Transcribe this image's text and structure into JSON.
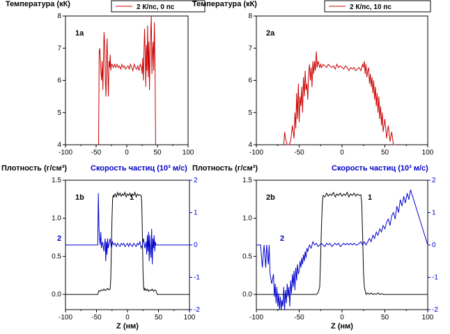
{
  "colors": {
    "black": "#000000",
    "red": "#cc0000",
    "blue": "#0000cc"
  },
  "chart_data": [
    {
      "panel": "1a",
      "type": "line",
      "ylabel": "Температура (кК)",
      "legend": "2 К/пс, 0 пс",
      "xlim": [
        -100,
        100
      ],
      "ylim": [
        4,
        8
      ],
      "xticks": [
        "-100",
        "-50",
        "0",
        "50",
        "100"
      ],
      "yticks": [
        "4",
        "5",
        "6",
        "7",
        "8"
      ],
      "series": [
        {
          "name": "2 К/пс, 0 пс",
          "color": "red",
          "x": [
            -46,
            -45,
            -44,
            -43,
            -42,
            -41,
            -40,
            -39,
            -38,
            -37,
            -36,
            -35,
            -34,
            -33,
            -32,
            -31,
            -30,
            -29,
            -28,
            -27,
            -26,
            -25,
            -24,
            -22,
            -20,
            -18,
            -16,
            -14,
            -12,
            -10,
            -8,
            -6,
            -4,
            -2,
            0,
            2,
            4,
            6,
            8,
            10,
            12,
            14,
            16,
            18,
            20,
            22,
            24,
            25,
            26,
            27,
            28,
            29,
            30,
            31,
            32,
            33,
            34,
            35,
            36,
            37,
            38,
            39,
            40,
            41,
            42,
            43,
            44,
            45,
            46,
            47
          ],
          "y": [
            4.0,
            6.9,
            7.0,
            6.6,
            6.2,
            6.0,
            6.6,
            5.7,
            6.8,
            7.5,
            7.1,
            6.0,
            5.5,
            6.8,
            7.3,
            6.2,
            5.5,
            6.6,
            6.4,
            6.8,
            6.3,
            6.5,
            6.5,
            6.4,
            6.5,
            6.4,
            6.5,
            6.4,
            6.45,
            6.35,
            6.5,
            6.4,
            6.45,
            6.35,
            6.4,
            6.45,
            6.35,
            6.5,
            6.4,
            6.3,
            6.5,
            6.4,
            6.35,
            6.45,
            6.3,
            6.5,
            6.4,
            6.2,
            6.7,
            6.0,
            6.8,
            7.6,
            6.9,
            5.8,
            7.1,
            6.3,
            7.7,
            6.1,
            7.2,
            5.7,
            6.8,
            7.4,
            8.0,
            6.2,
            6.9,
            7.2,
            6.3,
            7.8,
            6.6,
            4.0
          ]
        }
      ]
    },
    {
      "panel": "2a",
      "type": "line",
      "ylabel": "Температура (кК)",
      "legend": "2 К/пс, 10 пс",
      "xlim": [
        -100,
        100
      ],
      "ylim": [
        4,
        8
      ],
      "xticks": [
        "-100",
        "-50",
        "0",
        "50",
        "100"
      ],
      "yticks": [
        "4",
        "5",
        "6",
        "7",
        "8"
      ],
      "series": [
        {
          "name": "2 К/пс, 10 пс",
          "color": "red",
          "x": [
            -68,
            -67,
            -66,
            -64,
            -62,
            -60,
            -58,
            -56,
            -55,
            -54,
            -53,
            -52,
            -51,
            -50,
            -49,
            -48,
            -47,
            -46,
            -45,
            -44,
            -43,
            -42,
            -41,
            -40,
            -39,
            -38,
            -37,
            -36,
            -35,
            -34,
            -33,
            -32,
            -31,
            -30,
            -29,
            -28,
            -27,
            -26,
            -25,
            -24,
            -22,
            -20,
            -18,
            -16,
            -14,
            -12,
            -10,
            -8,
            -6,
            -4,
            -2,
            0,
            2,
            4,
            6,
            8,
            10,
            12,
            14,
            16,
            18,
            20,
            22,
            24,
            25,
            26,
            27,
            28,
            29,
            30,
            31,
            32,
            33,
            34,
            35,
            36,
            37,
            38,
            39,
            40,
            41,
            42,
            43,
            44,
            45,
            46,
            47,
            48,
            50,
            52,
            54,
            56,
            58,
            60,
            62
          ],
          "y": [
            4.0,
            4.4,
            4.2,
            4.0,
            4.0,
            4.1,
            4.6,
            4.2,
            5.0,
            4.5,
            5.6,
            4.8,
            5.9,
            4.7,
            5.5,
            5.2,
            5.8,
            5.0,
            6.1,
            5.5,
            6.3,
            5.7,
            5.9,
            5.4,
            6.2,
            6.5,
            6.0,
            6.4,
            5.8,
            6.6,
            6.2,
            6.6,
            6.3,
            6.9,
            6.4,
            6.6,
            6.5,
            6.4,
            6.5,
            6.4,
            6.5,
            6.45,
            6.4,
            6.5,
            6.45,
            6.4,
            6.45,
            6.35,
            6.5,
            6.4,
            6.45,
            6.4,
            6.35,
            6.45,
            6.4,
            6.3,
            6.4,
            6.35,
            6.4,
            6.3,
            6.35,
            6.4,
            6.3,
            6.5,
            6.4,
            6.6,
            6.2,
            6.5,
            6.1,
            6.3,
            6.4,
            5.9,
            6.2,
            5.8,
            6.1,
            5.6,
            6.0,
            5.4,
            5.8,
            5.2,
            5.6,
            5.0,
            5.5,
            4.8,
            5.2,
            4.6,
            5.0,
            4.4,
            4.8,
            4.2,
            4.6,
            4.1,
            4.4,
            4.0,
            4.0
          ]
        }
      ]
    },
    {
      "panel": "1b",
      "type": "line",
      "ylabel": "Плотность (г/см³)",
      "y2label": "Скорость частиц (10³ м/с)",
      "xlabel": "Z (нм)",
      "xlim": [
        -100,
        100
      ],
      "ylim": [
        -0.2,
        1.5
      ],
      "y2lim": [
        -2,
        2
      ],
      "xticks": [
        "-100",
        "-50",
        "0",
        "50",
        "100"
      ],
      "yticks": [
        "0.0",
        "0.5",
        "1.0",
        "1.5"
      ],
      "y2ticks": [
        "-2",
        "-1",
        "0",
        "1",
        "2"
      ],
      "series": [
        {
          "name": "1",
          "color": "black",
          "axis": "left",
          "x": [
            -100,
            -48,
            -46,
            -44,
            -42,
            -40,
            -38,
            -36,
            -34,
            -32,
            -30,
            -28,
            -27,
            -26,
            -25,
            -24,
            -23,
            -22,
            -20,
            -18,
            -16,
            -14,
            -12,
            -10,
            -8,
            -6,
            -4,
            -2,
            0,
            2,
            4,
            6,
            8,
            10,
            12,
            14,
            16,
            18,
            20,
            22,
            23,
            24,
            25,
            26,
            27,
            28,
            30,
            32,
            34,
            36,
            38,
            40,
            42,
            44,
            46,
            48,
            100
          ],
          "y": [
            0.0,
            0.0,
            0.05,
            0.04,
            0.06,
            0.05,
            0.07,
            0.05,
            0.06,
            0.08,
            0.06,
            0.07,
            0.2,
            0.6,
            1.0,
            1.25,
            1.3,
            1.28,
            1.32,
            1.28,
            1.34,
            1.3,
            1.33,
            1.29,
            1.32,
            1.3,
            1.34,
            1.28,
            1.32,
            1.3,
            1.33,
            1.29,
            1.32,
            1.3,
            1.34,
            1.28,
            1.32,
            1.3,
            1.31,
            1.3,
            1.2,
            0.8,
            0.3,
            0.1,
            0.05,
            0.08,
            0.05,
            0.07,
            0.04,
            0.06,
            0.05,
            0.07,
            0.04,
            0.06,
            0.05,
            0.0,
            0.0
          ]
        },
        {
          "name": "2",
          "color": "blue",
          "axis": "right",
          "x": [
            -100,
            -48,
            -47,
            -46,
            -45,
            -44,
            -43,
            -42,
            -40,
            -38,
            -36,
            -35,
            -34,
            -33,
            -32,
            -31,
            -30,
            -28,
            -26,
            -24,
            -22,
            -20,
            -18,
            -16,
            -14,
            -12,
            -10,
            -8,
            -6,
            -4,
            -2,
            0,
            2,
            4,
            6,
            8,
            10,
            12,
            14,
            16,
            18,
            20,
            22,
            24,
            26,
            28,
            30,
            31,
            32,
            33,
            34,
            35,
            36,
            37,
            38,
            39,
            40,
            41,
            42,
            43,
            44,
            45,
            46,
            48,
            100
          ],
          "y": [
            0.0,
            0.0,
            1.6,
            0.5,
            0.2,
            0.0,
            0.4,
            -0.1,
            0.1,
            -0.2,
            0.2,
            -0.5,
            0.1,
            -0.3,
            0.2,
            -0.1,
            0.0,
            0.2,
            -0.1,
            0.1,
            0.0,
            0.05,
            -0.05,
            0.05,
            0.0,
            -0.05,
            0.05,
            0.0,
            0.05,
            -0.05,
            0.0,
            0.05,
            -0.05,
            0.05,
            0.0,
            -0.05,
            0.05,
            0.0,
            -0.05,
            0.05,
            0.0,
            0.1,
            -0.1,
            0.0,
            0.2,
            -0.1,
            0.1,
            -0.3,
            0.3,
            -0.2,
            0.4,
            -0.5,
            0.3,
            -0.2,
            -0.4,
            0.5,
            -0.6,
            0.2,
            -0.1,
            0.3,
            -0.2,
            0.1,
            0.0,
            0.0,
            0.0
          ]
        }
      ]
    },
    {
      "panel": "2b",
      "type": "line",
      "ylabel": "Плотность (г/см³)",
      "y2label": "Скорость частиц (10³ м/с)",
      "xlabel": "Z (нм)",
      "xlim": [
        -100,
        100
      ],
      "ylim": [
        -0.2,
        1.5
      ],
      "y2lim": [
        -2,
        2
      ],
      "xticks": [
        "-100",
        "-50",
        "0",
        "50",
        "100"
      ],
      "yticks": [
        "0.0",
        "0.5",
        "1.0",
        "1.5"
      ],
      "y2ticks": [
        "-2",
        "-1",
        "0",
        "1",
        "2"
      ],
      "series": [
        {
          "name": "1",
          "color": "black",
          "axis": "left",
          "x": [
            -100,
            -70,
            -60,
            -50,
            -40,
            -30,
            -28,
            -26,
            -25,
            -24,
            -23,
            -22,
            -20,
            -18,
            -16,
            -14,
            -12,
            -10,
            -8,
            -6,
            -4,
            -2,
            0,
            2,
            4,
            6,
            8,
            10,
            12,
            14,
            16,
            18,
            20,
            22,
            23,
            24,
            25,
            26,
            27,
            28,
            30,
            32,
            34,
            36,
            38,
            40,
            42,
            44,
            46,
            48,
            50,
            55,
            60,
            70,
            80,
            100
          ],
          "y": [
            0.0,
            0.0,
            0.0,
            0.0,
            0.0,
            0.0,
            0.02,
            0.1,
            0.5,
            0.9,
            1.2,
            1.3,
            1.28,
            1.33,
            1.29,
            1.32,
            1.3,
            1.34,
            1.28,
            1.32,
            1.3,
            1.33,
            1.29,
            1.32,
            1.3,
            1.34,
            1.28,
            1.32,
            1.3,
            1.33,
            1.29,
            1.32,
            1.3,
            1.31,
            1.2,
            0.8,
            0.3,
            0.1,
            0.05,
            0.0,
            0.02,
            0.0,
            0.02,
            0.0,
            0.01,
            0.0,
            0.02,
            0.0,
            0.01,
            0.0,
            0.0,
            0.0,
            0.0,
            0.0,
            0.0,
            0.0
          ]
        },
        {
          "name": "2",
          "color": "blue",
          "axis": "right",
          "x": [
            -100,
            -95,
            -93,
            -91,
            -89,
            -88,
            -86,
            -85,
            -84,
            -82,
            -80,
            -79,
            -78,
            -77,
            -76,
            -75,
            -74,
            -73,
            -72,
            -71,
            -70,
            -69,
            -68,
            -67,
            -66,
            -65,
            -64,
            -63,
            -62,
            -61,
            -60,
            -59,
            -58,
            -57,
            -56,
            -55,
            -54,
            -53,
            -52,
            -51,
            -50,
            -49,
            -48,
            -47,
            -46,
            -45,
            -44,
            -43,
            -42,
            -41,
            -40,
            -38,
            -36,
            -34,
            -32,
            -30,
            -28,
            -26,
            -24,
            -22,
            -20,
            -18,
            -16,
            -14,
            -12,
            -10,
            -8,
            -6,
            -4,
            -2,
            0,
            2,
            4,
            6,
            8,
            10,
            12,
            14,
            16,
            18,
            20,
            22,
            24,
            26,
            28,
            30,
            32,
            34,
            36,
            38,
            40,
            42,
            44,
            46,
            48,
            50,
            52,
            54,
            56,
            58,
            60,
            62,
            64,
            66,
            68,
            70,
            72,
            74,
            76,
            78,
            80,
            100
          ],
          "y": [
            0.0,
            0.0,
            -0.7,
            0.0,
            -0.7,
            0.0,
            -0.6,
            0.0,
            -0.9,
            -1.2,
            -0.9,
            -1.6,
            -1.2,
            -1.8,
            -1.3,
            -1.9,
            -1.5,
            -2.0,
            -1.6,
            -2.0,
            -1.7,
            -1.9,
            -1.3,
            -2.0,
            -1.4,
            -1.8,
            -1.2,
            -1.6,
            -1.3,
            -1.9,
            -1.1,
            -1.5,
            -0.9,
            -1.3,
            -0.8,
            -1.4,
            -0.7,
            -1.1,
            -0.6,
            -0.9,
            -0.8,
            -0.5,
            -0.7,
            -0.4,
            -0.6,
            -0.3,
            -0.5,
            -0.2,
            -0.4,
            -0.1,
            -0.2,
            0.0,
            -0.1,
            0.1,
            0.0,
            0.05,
            -0.05,
            0.0,
            0.05,
            0.0,
            -0.05,
            0.05,
            0.0,
            0.05,
            -0.05,
            0.0,
            0.05,
            0.0,
            0.05,
            -0.05,
            0.0,
            0.05,
            0.0,
            0.05,
            0.0,
            0.05,
            0.0,
            0.05,
            0.0,
            0.0,
            0.05,
            0.1,
            0.0,
            0.1,
            0.0,
            0.1,
            0.2,
            0.1,
            0.3,
            0.2,
            0.4,
            0.3,
            0.5,
            0.4,
            0.6,
            0.5,
            0.7,
            0.8,
            0.6,
            0.9,
            1.0,
            0.8,
            1.2,
            1.0,
            1.4,
            1.2,
            1.5,
            1.3,
            1.6,
            1.4,
            1.7,
            0.0
          ]
        }
      ]
    }
  ],
  "extra": [
    {
      "panel": "1a",
      "label": "1a"
    },
    {
      "panel": "2a",
      "label": "2a"
    },
    {
      "panel": "1b",
      "label": "1b",
      "label1": "1",
      "label2": "2"
    },
    {
      "panel": "2b",
      "label": "2b",
      "label1": "1",
      "label2": "2"
    }
  ]
}
